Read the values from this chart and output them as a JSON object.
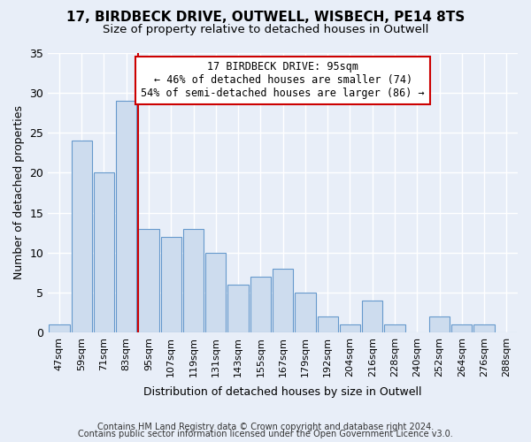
{
  "title1": "17, BIRDBECK DRIVE, OUTWELL, WISBECH, PE14 8TS",
  "title2": "Size of property relative to detached houses in Outwell",
  "xlabel": "Distribution of detached houses by size in Outwell",
  "ylabel": "Number of detached properties",
  "categories": [
    "47sqm",
    "59sqm",
    "71sqm",
    "83sqm",
    "95sqm",
    "107sqm",
    "119sqm",
    "131sqm",
    "143sqm",
    "155sqm",
    "167sqm",
    "179sqm",
    "192sqm",
    "204sqm",
    "216sqm",
    "228sqm",
    "240sqm",
    "252sqm",
    "264sqm",
    "276sqm",
    "288sqm"
  ],
  "values": [
    1,
    24,
    20,
    29,
    13,
    12,
    13,
    10,
    6,
    7,
    8,
    5,
    2,
    1,
    4,
    1,
    0,
    2,
    1,
    1,
    0
  ],
  "bar_color": "#cddcee",
  "bar_edge_color": "#6699cc",
  "red_line_index": 4,
  "annotation_title": "17 BIRDBECK DRIVE: 95sqm",
  "annotation_line2": "← 46% of detached houses are smaller (74)",
  "annotation_line3": "54% of semi-detached houses are larger (86) →",
  "annotation_box_color": "#ffffff",
  "annotation_box_edge": "#cc0000",
  "ylim": [
    0,
    35
  ],
  "yticks": [
    0,
    5,
    10,
    15,
    20,
    25,
    30,
    35
  ],
  "footer1": "Contains HM Land Registry data © Crown copyright and database right 2024.",
  "footer2": "Contains public sector information licensed under the Open Government Licence v3.0.",
  "bg_color": "#e8eef8",
  "grid_color": "#ffffff"
}
